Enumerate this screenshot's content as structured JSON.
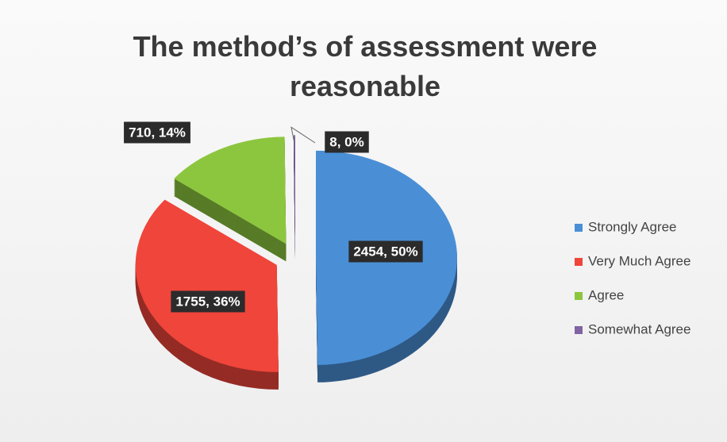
{
  "chart_data": {
    "type": "pie",
    "title": "The method’s of assessment were reasonable",
    "categories": [
      "Strongly Agree",
      "Very Much Agree",
      "Agree",
      "Somewhat Agree"
    ],
    "values": [
      2454,
      1755,
      710,
      8
    ],
    "value_labels": [
      "2454, 50%",
      "1755, 36%",
      "710, 14%",
      "8, 0%"
    ],
    "colors": [
      "#4a8fd6",
      "#f0453b",
      "#8cc63f",
      "#8064a2"
    ],
    "legend": "right"
  }
}
